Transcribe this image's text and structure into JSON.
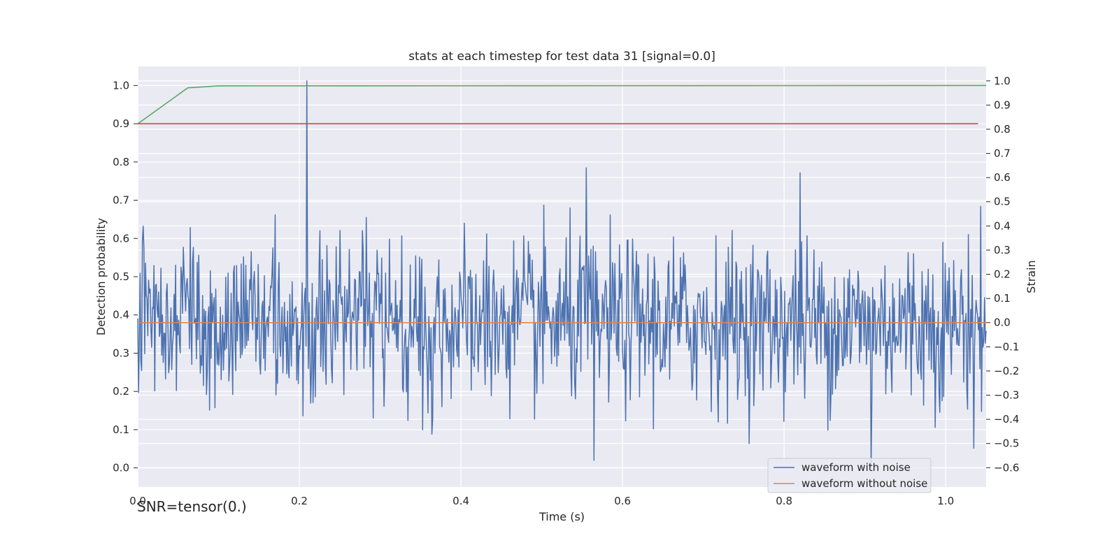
{
  "chart_data": {
    "type": "line",
    "title": "stats at each timestep for test data 31 [signal=0.0]",
    "xlabel": "Time (s)",
    "ylabel_left": "Detection probability",
    "ylabel_right": "Strain",
    "xlim": [
      0.0,
      1.05
    ],
    "ylim_left": [
      -0.05,
      1.05
    ],
    "ylim_right": [
      -0.68,
      1.06
    ],
    "x_ticks": [
      "0.0",
      "0.2",
      "0.4",
      "0.6",
      "0.8",
      "1.0"
    ],
    "y_ticks_left": [
      "0.0",
      "0.1",
      "0.2",
      "0.3",
      "0.4",
      "0.5",
      "0.6",
      "0.7",
      "0.8",
      "0.9",
      "1.0"
    ],
    "y_ticks_right": [
      "−0.6",
      "−0.5",
      "−0.4",
      "−0.3",
      "−0.2",
      "−0.1",
      "0.0",
      "0.1",
      "0.2",
      "0.3",
      "0.4",
      "0.5",
      "0.6",
      "0.7",
      "0.8",
      "0.9",
      "1.0"
    ],
    "grid": true,
    "legend_placement": "lower-right",
    "series": [
      {
        "name": "waveform with noise",
        "axis": "right",
        "color": "#4c72b0",
        "x_range": [
          0.0,
          1.05
        ],
        "n_points": 1100,
        "noise_std": 0.17,
        "seed": 31,
        "notable_peaks": [
          {
            "x": 0.209,
            "y": 1.0
          },
          {
            "x": 0.555,
            "y": 0.64
          },
          {
            "x": 0.82,
            "y": 0.62
          },
          {
            "x": 0.565,
            "y": -0.57
          },
          {
            "x": 0.908,
            "y": -0.6
          },
          {
            "x": 1.035,
            "y": -0.52
          }
        ]
      },
      {
        "name": "waveform without noise",
        "axis": "right",
        "color": "#dd8452",
        "x": [
          0.0,
          1.05
        ],
        "y": [
          0.0,
          0.0
        ]
      },
      {
        "axis": "left",
        "color": "#55a868",
        "x": [
          0.0,
          0.062,
          0.1,
          1.05
        ],
        "y": [
          0.9,
          0.994,
          0.999,
          1.0
        ]
      },
      {
        "axis": "left",
        "color": "#c44e52",
        "x": [
          0.0,
          1.04
        ],
        "y": [
          0.9,
          0.9
        ]
      }
    ]
  },
  "annotation": "SNR=tensor(0.)"
}
